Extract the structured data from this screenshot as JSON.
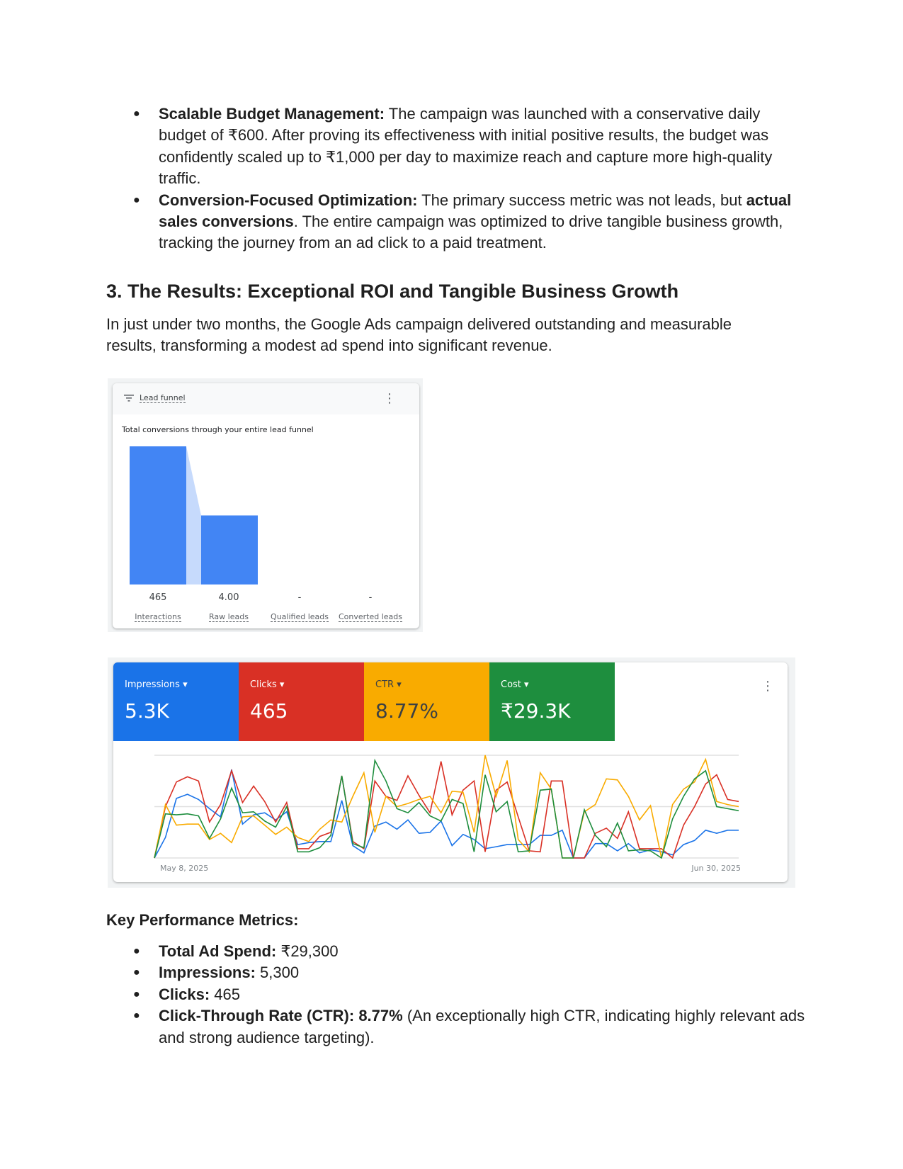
{
  "bullets_top": [
    {
      "bold": "Scalable Budget Management:",
      "text": " The campaign was launched with a conservative daily budget of ₹600. After proving its effectiveness with initial positive results, the budget was confidently scaled up to ₹1,000 per day to maximize reach and capture more high-quality traffic."
    },
    {
      "bold": "Conversion-Focused Optimization:",
      "text": " The primary success metric was not leads, but ",
      "bold2": "actual sales conversions",
      "text2": ". The entire campaign was optimized to drive tangible business growth, tracking the journey from an ad click to a paid treatment."
    }
  ],
  "section_heading": "3. The Results: Exceptional ROI and Tangible Business Growth",
  "intro": "In just under two months, the Google Ads campaign delivered outstanding and measurable results, transforming a modest ad spend into significant revenue.",
  "funnel_card": {
    "title": "Lead funnel",
    "subtitle": "Total conversions through your entire lead funnel",
    "icons": {
      "filter": "filter-icon",
      "menu": "more-vert-icon"
    }
  },
  "metrics_card": {
    "tiles": [
      {
        "label": "Impressions",
        "value": "5.3K",
        "color": "#1a73e8"
      },
      {
        "label": "Clicks",
        "value": "465",
        "color": "#d93025"
      },
      {
        "label": "CTR",
        "value": "8.77%",
        "color": "#f9ab00"
      },
      {
        "label": "Cost",
        "value": "₹29.3K",
        "color": "#1e8e3e"
      }
    ],
    "start_date": "May 8, 2025",
    "end_date": "Jun 30, 2025"
  },
  "chart_data": [
    {
      "type": "bar",
      "title": "Total conversions through your entire lead funnel",
      "categories": [
        "Interactions",
        "Raw leads",
        "Qualified leads",
        "Converted leads"
      ],
      "value_labels": [
        "465",
        "4.00",
        "-",
        "-"
      ],
      "bar_heights_relative": [
        1.0,
        0.5,
        0,
        0
      ],
      "color": "#4285f4",
      "connector_color": "#c6dafc"
    },
    {
      "type": "line",
      "x_range": [
        "May 8, 2025",
        "Jun 30, 2025"
      ],
      "grid": true,
      "series": [
        {
          "name": "Impressions",
          "color": "#1a73e8",
          "values": [
            0,
            20,
            58,
            62,
            57,
            48,
            40,
            86,
            33,
            42,
            44,
            37,
            45,
            13,
            15,
            16,
            16,
            56,
            12,
            5,
            31,
            35,
            28,
            37,
            24,
            25,
            36,
            12,
            23,
            18,
            9,
            11,
            13,
            13,
            13,
            22,
            22,
            27,
            0,
            0,
            14,
            14,
            7,
            14,
            5,
            8,
            6,
            3,
            13,
            17,
            27,
            24,
            27,
            27
          ]
        },
        {
          "name": "Clicks",
          "color": "#d93025",
          "values": [
            0,
            50,
            74,
            79,
            75,
            35,
            52,
            85,
            54,
            70,
            55,
            35,
            54,
            9,
            9,
            21,
            25,
            80,
            16,
            9,
            75,
            60,
            56,
            80,
            61,
            44,
            94,
            42,
            66,
            75,
            6,
            66,
            74,
            40,
            7,
            6,
            75,
            75,
            0,
            0,
            24,
            29,
            19,
            45,
            9,
            9,
            9,
            0,
            32,
            50,
            72,
            81,
            57,
            55
          ]
        },
        {
          "name": "CTR",
          "color": "#f9ab00",
          "values": [
            0,
            52,
            32,
            33,
            33,
            18,
            24,
            15,
            40,
            41,
            32,
            23,
            30,
            20,
            16,
            28,
            37,
            35,
            60,
            83,
            25,
            60,
            50,
            53,
            57,
            60,
            44,
            65,
            64,
            25,
            100,
            60,
            95,
            18,
            6,
            83,
            67,
            0,
            0,
            45,
            52,
            77,
            76,
            60,
            37,
            51,
            0,
            52,
            67,
            74,
            96,
            55,
            52,
            50
          ]
        },
        {
          "name": "Cost",
          "color": "#1e8e3e",
          "values": [
            0,
            43,
            42,
            43,
            41,
            19,
            38,
            68,
            44,
            45,
            36,
            30,
            50,
            6,
            6,
            10,
            22,
            80,
            14,
            10,
            95,
            75,
            48,
            44,
            54,
            41,
            36,
            57,
            53,
            6,
            81,
            45,
            55,
            6,
            7,
            66,
            67,
            0,
            0,
            47,
            22,
            11,
            34,
            7,
            8,
            7,
            0,
            38,
            60,
            77,
            85,
            50,
            48,
            46
          ]
        }
      ]
    }
  ],
  "kpm_heading": "Key Performance Metrics:",
  "kpm_items": [
    {
      "bold": "Total Ad Spend:",
      "text": " ₹29,300"
    },
    {
      "bold": "Impressions:",
      "text": " 5,300"
    },
    {
      "bold": "Clicks:",
      "text": " 465"
    },
    {
      "bold": "Click-Through Rate (CTR): 8.77%",
      "text": " (An exceptionally high CTR, indicating highly relevant ads and strong audience targeting)."
    }
  ]
}
